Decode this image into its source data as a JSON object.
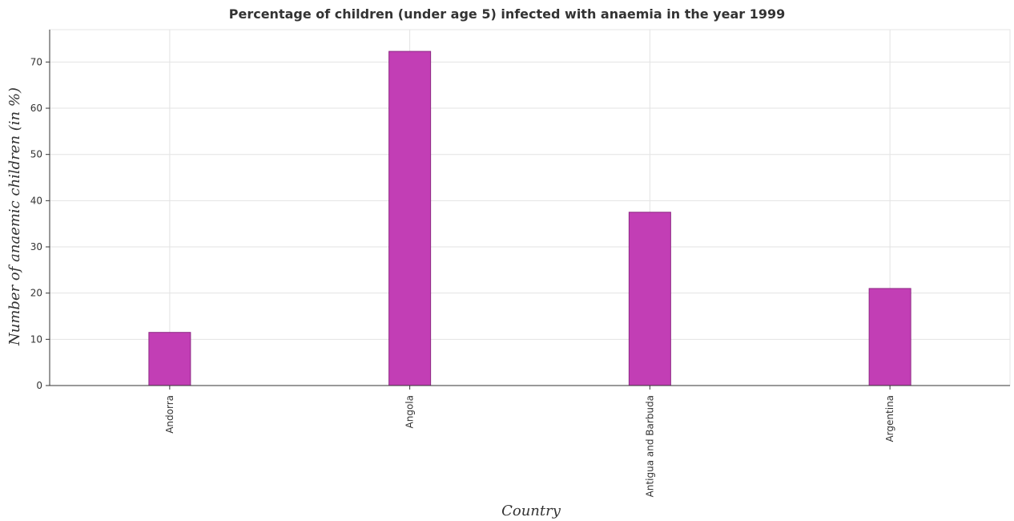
{
  "chart_data": {
    "type": "bar",
    "title": "Percentage of children (under age 5) infected with anaemia in the year 1999",
    "xlabel": "Country",
    "ylabel": "Number of anaemic children (in %)",
    "categories": [
      "Andorra",
      "Angola",
      "Antigua and Barbuda",
      "Argentina"
    ],
    "values": [
      11.5,
      72.3,
      37.5,
      21.0
    ],
    "ylim": [
      0,
      77
    ],
    "yticks": [
      0,
      10,
      20,
      30,
      40,
      50,
      60,
      70
    ],
    "grid": true,
    "bar_color": "#c23eb5",
    "bar_edge_color": "#8e2a85"
  }
}
